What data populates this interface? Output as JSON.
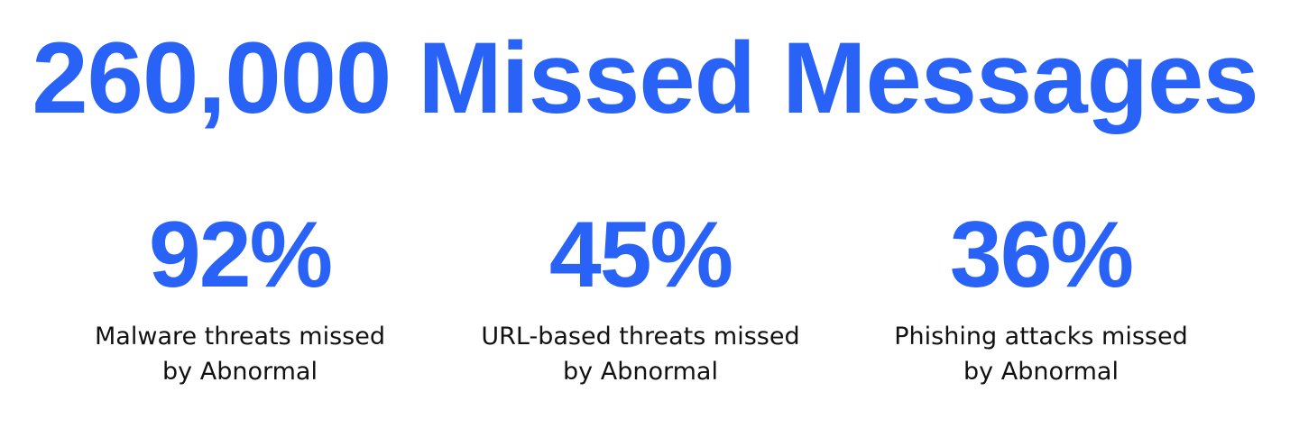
{
  "headline": "260,000 Missed Messages",
  "colors": {
    "accent": "#2962f6",
    "text": "#111111",
    "background": "#ffffff"
  },
  "stats": [
    {
      "value": "92%",
      "label_line1": "Malware threats missed",
      "label_line2": "by Abnormal"
    },
    {
      "value": "45%",
      "label_line1": "URL-based threats missed",
      "label_line2": "by Abnormal"
    },
    {
      "value": "36%",
      "label_line1": "Phishing attacks missed",
      "label_line2": "by Abnormal"
    }
  ]
}
